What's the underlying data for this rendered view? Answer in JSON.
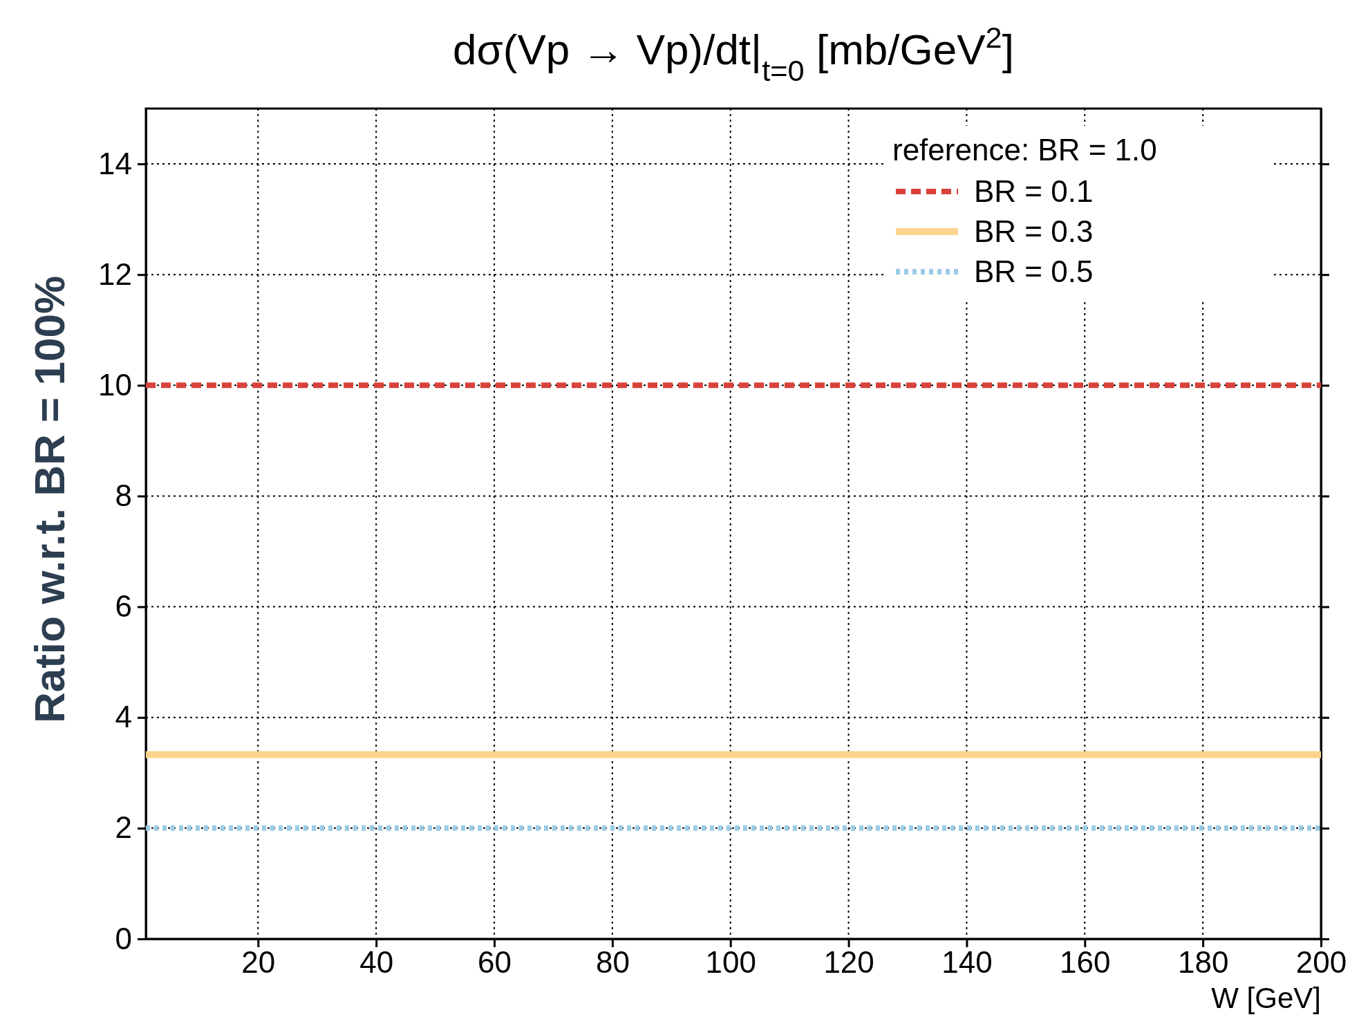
{
  "chart_data": {
    "type": "line",
    "title": "dσ(Vp → Vp)/dt|$_{t=0}$ [mb/GeV$^{2}$]",
    "xlabel": "W [GeV]",
    "ylabel": "Ratio w.r.t. BR = 100%",
    "legend_title": "reference: BR = 1.0",
    "legend": "top right",
    "grid": true,
    "xlim": [
      1,
      200
    ],
    "xticks": [
      20,
      40,
      60,
      80,
      100,
      120,
      140,
      160,
      180,
      200
    ],
    "ylim": [
      0,
      15
    ],
    "yticks": [
      0,
      2,
      4,
      6,
      8,
      10,
      12,
      14
    ],
    "x": [
      1,
      200
    ],
    "series": [
      {
        "name": "BR = 0.1",
        "color": "#d9413a",
        "values": [
          10,
          10
        ],
        "line_style": "dashed"
      },
      {
        "name": "BR = 0.3",
        "color": "#fdd38d",
        "values": [
          3.33,
          3.33
        ],
        "line_style": "solid"
      },
      {
        "name": "BR = 0.5",
        "color": "#99cce6",
        "values": [
          2,
          2
        ],
        "line_style": "dotted"
      }
    ]
  }
}
